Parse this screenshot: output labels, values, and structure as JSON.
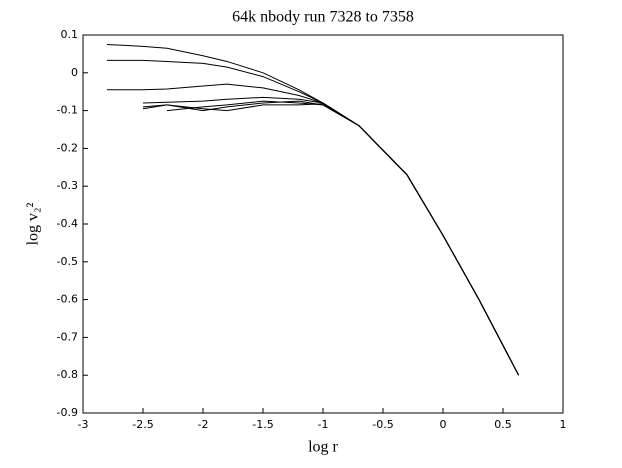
{
  "chart_data": {
    "type": "line",
    "title": "64k nbody run 7328 to 7358",
    "x_label": "log r",
    "y_label": "log v₂²",
    "x": [
      -2.8,
      -2.5,
      -2.3,
      -2,
      -1.8,
      -1.5,
      -1.2,
      -1,
      -0.7,
      -0.3,
      0,
      0.3,
      0.63
    ],
    "series": [
      {
        "color": "#000000",
        "values": [
          0.075,
          0.07,
          0.065,
          0.045,
          0.03,
          0,
          -0.045,
          -0.08,
          -0.14,
          -0.27,
          -0.43,
          -0.6,
          -0.8
        ]
      },
      {
        "color": "#000000",
        "values": [
          0.033,
          0.033,
          0.03,
          0.025,
          0.015,
          -0.01,
          -0.05,
          -0.08,
          -0.14,
          -0.27,
          -0.43,
          -0.6,
          -0.8
        ]
      },
      {
        "color": "#000000",
        "values": [
          -0.045,
          -0.045,
          -0.043,
          -0.035,
          -0.03,
          -0.04,
          -0.06,
          -0.08,
          -0.14,
          -0.27,
          -0.43,
          -0.6,
          -0.8
        ]
      },
      {
        "color": "#000000",
        "values": [
          null,
          -0.08,
          -0.078,
          -0.075,
          -0.07,
          -0.065,
          -0.07,
          -0.08,
          -0.14,
          -0.27,
          -0.43,
          -0.6,
          -0.8
        ]
      },
      {
        "color": "#000000",
        "values": [
          null,
          -0.09,
          -0.085,
          -0.1,
          -0.09,
          -0.08,
          -0.075,
          -0.085,
          -0.14,
          -0.27,
          -0.43,
          -0.6,
          -0.8
        ]
      },
      {
        "color": "#000000",
        "values": [
          null,
          null,
          -0.1,
          -0.09,
          -0.085,
          -0.075,
          -0.08,
          -0.085,
          -0.14,
          -0.27,
          -0.43,
          -0.6,
          -0.8
        ]
      },
      {
        "color": "#000000",
        "values": [
          null,
          -0.095,
          -0.085,
          -0.095,
          -0.1,
          -0.085,
          -0.085,
          -0.082,
          -0.14,
          -0.27,
          -0.43,
          -0.6,
          -0.8
        ]
      }
    ],
    "xlim": [
      -3,
      1
    ],
    "xticks": [
      -3,
      -2.5,
      -2,
      -1.5,
      -1,
      -0.5,
      0,
      0.5,
      1
    ],
    "ylim": [
      -0.9,
      0.1
    ],
    "yticks": [
      -0.9,
      -0.8,
      -0.7,
      -0.6,
      -0.5,
      -0.4,
      -0.3,
      -0.2,
      -0.1,
      0,
      0.1
    ],
    "grid": false
  }
}
